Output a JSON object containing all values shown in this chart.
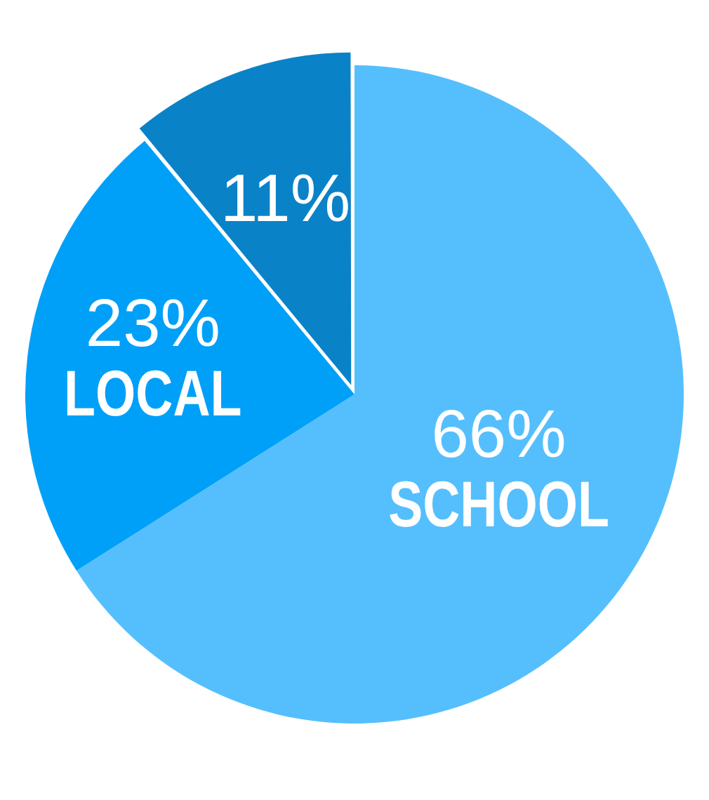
{
  "chart_data": {
    "type": "pie",
    "categories": [
      "SCHOOL",
      "LOCAL",
      null
    ],
    "values": [
      66,
      23,
      11
    ],
    "colors": [
      "#55bffd",
      "#00a0f8",
      "#0a82c8"
    ],
    "value_labels": [
      "66%",
      "23%",
      "11%"
    ],
    "legend": false
  }
}
